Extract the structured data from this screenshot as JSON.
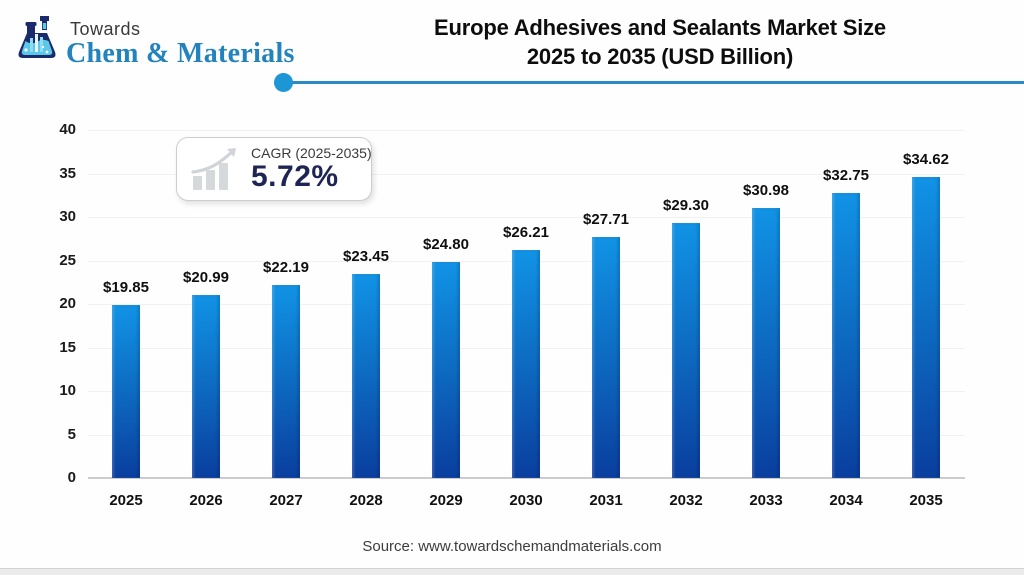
{
  "header": {
    "logo": {
      "towards": "Towards",
      "brand": "Chem & Materials"
    },
    "title_line1": "Europe Adhesives and Sealants Market Size",
    "title_line2": "2025 to 2035 (USD Billion)"
  },
  "cagr_badge": {
    "label": "CAGR (2025-2035)",
    "value": "5.72%"
  },
  "chart_data": {
    "type": "bar",
    "title": "Europe Adhesives and Sealants Market Size 2025 to 2035 (USD Billion)",
    "categories": [
      "2025",
      "2026",
      "2027",
      "2028",
      "2029",
      "2030",
      "2031",
      "2032",
      "2033",
      "2034",
      "2035"
    ],
    "values": [
      19.85,
      20.99,
      22.19,
      23.45,
      24.8,
      26.21,
      27.71,
      29.3,
      30.98,
      32.75,
      34.62
    ],
    "value_labels": [
      "$19.85",
      "$20.99",
      "$22.19",
      "$23.45",
      "$24.80",
      "$26.21",
      "$27.71",
      "$29.30",
      "$30.98",
      "$32.75",
      "$34.62"
    ],
    "xlabel": "",
    "ylabel": "",
    "ylim": [
      0,
      40
    ],
    "yticks": [
      0,
      5,
      10,
      15,
      20,
      25,
      30,
      35,
      40
    ],
    "grid": "faint horizontal gridlines",
    "legend": "none",
    "bar_color_top": "#1193e6",
    "bar_color_bottom": "#0a3e9e"
  },
  "footer": {
    "source": "Source: www.towardschemandmaterials.com"
  },
  "colors": {
    "divider_line": "#2b8cc4",
    "divider_dot": "#1d96d6",
    "brand_blue": "#2383bd",
    "cagr_value_navy": "#1e2554"
  }
}
